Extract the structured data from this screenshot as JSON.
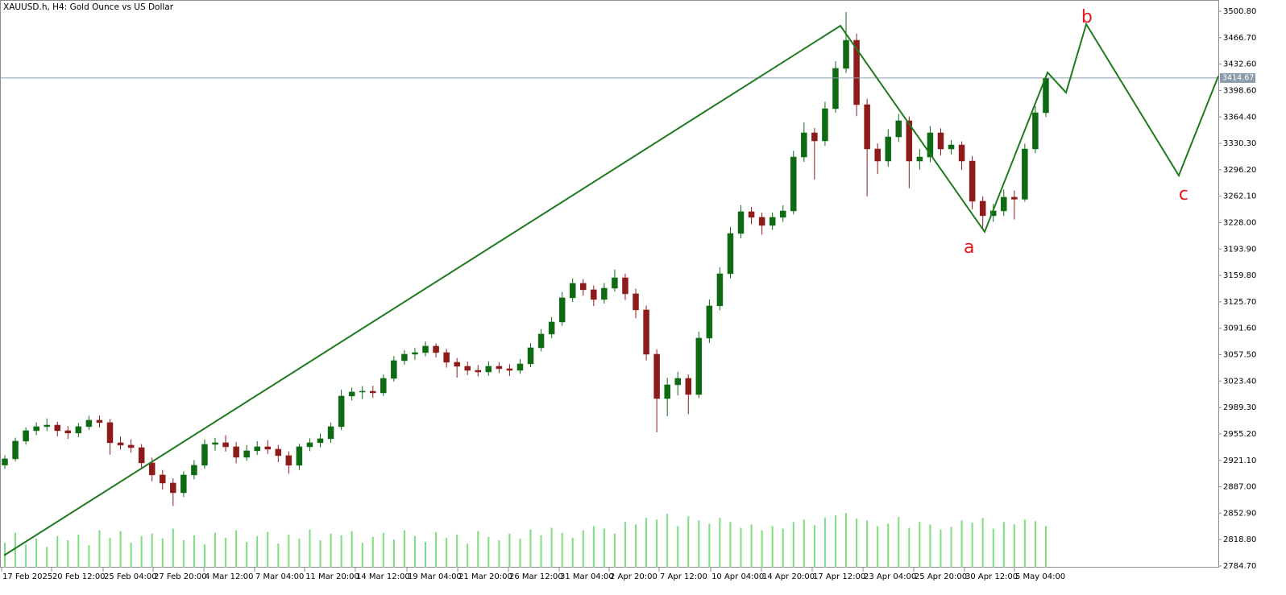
{
  "chart_data": {
    "type": "candlestick",
    "title": "XAUUSD.h, H4:  Gold Ounce vs US Dollar",
    "ylim": [
      2782.6,
      3515.4
    ],
    "yticks": [
      {
        "value": 3500.8,
        "label": "3500.80"
      },
      {
        "value": 3466.7,
        "label": "3466.70"
      },
      {
        "value": 3432.6,
        "label": "3432.60"
      },
      {
        "value": 3398.6,
        "label": "3398.60"
      },
      {
        "value": 3364.4,
        "label": "3364.40"
      },
      {
        "value": 3330.3,
        "label": "3330.30"
      },
      {
        "value": 3296.2,
        "label": "3296.20"
      },
      {
        "value": 3262.1,
        "label": "3262.10"
      },
      {
        "value": 3228.0,
        "label": "3228.00"
      },
      {
        "value": 3193.9,
        "label": "3193.90"
      },
      {
        "value": 3159.8,
        "label": "3159.80"
      },
      {
        "value": 3125.7,
        "label": "3125.70"
      },
      {
        "value": 3091.6,
        "label": "3091.60"
      },
      {
        "value": 3057.5,
        "label": "3057.50"
      },
      {
        "value": 3023.4,
        "label": "3023.40"
      },
      {
        "value": 2989.3,
        "label": "2989.30"
      },
      {
        "value": 2955.2,
        "label": "2955.20"
      },
      {
        "value": 2921.1,
        "label": "2921.10"
      },
      {
        "value": 2887.0,
        "label": "2887.00"
      },
      {
        "value": 2852.9,
        "label": "2852.90"
      },
      {
        "value": 2818.8,
        "label": "2818.80"
      },
      {
        "value": 2784.7,
        "label": "2784.70"
      }
    ],
    "xlim": [
      -0.46,
      115.4
    ],
    "xticks": [
      {
        "value": -0.31,
        "label": "17 Feb 2025"
      },
      {
        "value": 4.44,
        "label": "20 Feb 12:00"
      },
      {
        "value": 9.35,
        "label": "25 Feb 04:00"
      },
      {
        "value": 14.1,
        "label": "27 Feb 20:00"
      },
      {
        "value": 18.93,
        "label": "4 Mar 12:00"
      },
      {
        "value": 23.75,
        "label": "7 Mar 04:00"
      },
      {
        "value": 28.51,
        "label": "11 Mar 20:00"
      },
      {
        "value": 33.33,
        "label": "14 Mar 12:00"
      },
      {
        "value": 38.24,
        "label": "19 Mar 04:00"
      },
      {
        "value": 43.07,
        "label": "21 Mar 20:00"
      },
      {
        "value": 47.89,
        "label": "26 Mar 12:00"
      },
      {
        "value": 52.72,
        "label": "31 Mar 04:00"
      },
      {
        "value": 57.47,
        "label": "2 Apr 20:00"
      },
      {
        "value": 62.22,
        "label": "7 Apr 12:00"
      },
      {
        "value": 67.13,
        "label": "10 Apr 04:00"
      },
      {
        "value": 71.95,
        "label": "14 Apr 20:00"
      },
      {
        "value": 76.78,
        "label": "17 Apr 12:00"
      },
      {
        "value": 81.61,
        "label": "23 Apr 04:00"
      },
      {
        "value": 86.43,
        "label": "25 Apr 20:00"
      },
      {
        "value": 91.26,
        "label": "30 Apr 12:00"
      },
      {
        "value": 96.01,
        "label": "5 May 04:00"
      }
    ],
    "colors": {
      "up": "#0e6b14",
      "down": "#8e1b1b",
      "volume": "#7fdc7f",
      "price_line": "#8a9bab"
    },
    "ohlc": [
      [
        2915.0,
        2927.5,
        2910.2,
        2923.0
      ],
      [
        2923.0,
        2950.3,
        2919.8,
        2945.9
      ],
      [
        2945.9,
        2963.8,
        2941.2,
        2959.4
      ],
      [
        2959.4,
        2970.1,
        2953.6,
        2964.6
      ],
      [
        2964.6,
        2975.2,
        2958.9,
        2966.6
      ],
      [
        2966.6,
        2971.0,
        2952.1,
        2959.4
      ],
      [
        2959.4,
        2965.3,
        2948.7,
        2956.3
      ],
      [
        2956.3,
        2969.4,
        2951.0,
        2964.6
      ],
      [
        2964.6,
        2978.6,
        2960.2,
        2972.9
      ],
      [
        2972.9,
        2979.1,
        2963.5,
        2969.8
      ],
      [
        2969.8,
        2974.2,
        2928.4,
        2943.8
      ],
      [
        2943.8,
        2951.6,
        2935.0,
        2940.7
      ],
      [
        2940.7,
        2948.3,
        2930.9,
        2937.5
      ],
      [
        2937.5,
        2942.0,
        2909.6,
        2917.8
      ],
      [
        2917.8,
        2924.5,
        2894.0,
        2902.2
      ],
      [
        2902.2,
        2908.7,
        2883.5,
        2891.8
      ],
      [
        2891.8,
        2898.0,
        2862.1,
        2879.3
      ],
      [
        2879.3,
        2906.9,
        2873.6,
        2902.2
      ],
      [
        2902.2,
        2921.4,
        2896.5,
        2914.7
      ],
      [
        2914.7,
        2948.0,
        2910.3,
        2941.7
      ],
      [
        2941.7,
        2950.2,
        2933.6,
        2943.8
      ],
      [
        2943.8,
        2953.5,
        2932.4,
        2938.6
      ],
      [
        2938.6,
        2944.7,
        2917.3,
        2925.1
      ],
      [
        2925.1,
        2940.8,
        2920.5,
        2933.4
      ],
      [
        2933.4,
        2945.9,
        2928.0,
        2938.6
      ],
      [
        2938.6,
        2947.2,
        2929.3,
        2935.5
      ],
      [
        2935.5,
        2941.1,
        2918.8,
        2927.2
      ],
      [
        2927.2,
        2932.6,
        2903.9,
        2914.7
      ],
      [
        2914.7,
        2942.3,
        2908.8,
        2938.6
      ],
      [
        2938.6,
        2949.5,
        2933.0,
        2943.8
      ],
      [
        2943.8,
        2955.4,
        2938.1,
        2949.0
      ],
      [
        2949.0,
        2969.9,
        2943.7,
        2964.6
      ],
      [
        2964.6,
        3012.5,
        2960.1,
        3004.1
      ],
      [
        3004.1,
        3015.0,
        2998.6,
        3009.3
      ],
      [
        3009.3,
        3016.8,
        3000.2,
        3010.3
      ],
      [
        3010.3,
        3017.4,
        3001.6,
        3008.2
      ],
      [
        3008.2,
        3032.0,
        3004.3,
        3026.9
      ],
      [
        3026.9,
        3055.7,
        3022.8,
        3049.8
      ],
      [
        3049.8,
        3063.4,
        3044.5,
        3058.1
      ],
      [
        3058.1,
        3066.2,
        3051.0,
        3060.2
      ],
      [
        3060.2,
        3074.6,
        3055.3,
        3068.5
      ],
      [
        3068.5,
        3072.1,
        3054.0,
        3060.2
      ],
      [
        3060.2,
        3065.0,
        3040.8,
        3047.7
      ],
      [
        3047.7,
        3053.3,
        3027.9,
        3042.5
      ],
      [
        3042.5,
        3048.6,
        3031.2,
        3037.3
      ],
      [
        3037.3,
        3044.0,
        3029.5,
        3035.2
      ],
      [
        3035.2,
        3049.1,
        3030.4,
        3042.5
      ],
      [
        3042.5,
        3047.8,
        3033.7,
        3039.4
      ],
      [
        3039.4,
        3045.2,
        3030.1,
        3037.3
      ],
      [
        3037.3,
        3051.9,
        3032.8,
        3045.6
      ],
      [
        3045.6,
        3072.3,
        3041.4,
        3066.4
      ],
      [
        3066.4,
        3090.5,
        3061.7,
        3084.1
      ],
      [
        3084.1,
        3106.2,
        3079.0,
        3099.7
      ],
      [
        3099.7,
        3138.4,
        3094.8,
        3130.9
      ],
      [
        3130.9,
        3156.0,
        3125.5,
        3149.6
      ],
      [
        3149.6,
        3155.1,
        3133.8,
        3141.3
      ],
      [
        3141.3,
        3146.9,
        3120.2,
        3128.8
      ],
      [
        3128.8,
        3150.0,
        3123.5,
        3143.3
      ],
      [
        3143.3,
        3167.4,
        3138.9,
        3156.8
      ],
      [
        3156.8,
        3162.2,
        3128.0,
        3136.1
      ],
      [
        3136.1,
        3142.7,
        3104.6,
        3115.3
      ],
      [
        3115.3,
        3121.0,
        3050.2,
        3058.1
      ],
      [
        3058.1,
        3064.5,
        2957.3,
        3000.9
      ],
      [
        3000.9,
        3027.6,
        2978.2,
        3018.6
      ],
      [
        3018.6,
        3035.4,
        3005.0,
        3026.9
      ],
      [
        3026.9,
        3032.1,
        2980.7,
        3006.1
      ],
      [
        3006.1,
        3087.3,
        3001.5,
        3078.9
      ],
      [
        3078.9,
        3128.8,
        3072.6,
        3120.5
      ],
      [
        3120.5,
        3170.2,
        3114.9,
        3162.0
      ],
      [
        3162.0,
        3222.6,
        3156.3,
        3214.0
      ],
      [
        3214.0,
        3250.5,
        3207.8,
        3242.1
      ],
      [
        3242.1,
        3248.4,
        3226.0,
        3234.8
      ],
      [
        3234.8,
        3240.9,
        3212.5,
        3224.4
      ],
      [
        3224.4,
        3241.0,
        3218.7,
        3234.8
      ],
      [
        3234.8,
        3250.3,
        3228.9,
        3243.1
      ],
      [
        3243.1,
        3320.8,
        3238.6,
        3312.7
      ],
      [
        3312.7,
        3357.2,
        3306.4,
        3343.9
      ],
      [
        3343.9,
        3350.1,
        3283.5,
        3333.5
      ],
      [
        3333.5,
        3384.0,
        3327.2,
        3375.1
      ],
      [
        3375.1,
        3436.3,
        3369.8,
        3427.1
      ],
      [
        3427.1,
        3499.8,
        3421.4,
        3463.4
      ],
      [
        3463.4,
        3472.0,
        3365.5,
        3380.3
      ],
      [
        3380.3,
        3387.9,
        3262.0,
        3323.1
      ],
      [
        3323.1,
        3330.4,
        3290.7,
        3307.5
      ],
      [
        3307.5,
        3348.6,
        3300.2,
        3338.7
      ],
      [
        3338.7,
        3368.3,
        3332.1,
        3359.5
      ],
      [
        3359.5,
        3365.0,
        3272.4,
        3307.5
      ],
      [
        3307.5,
        3322.9,
        3296.3,
        3312.7
      ],
      [
        3312.7,
        3352.5,
        3306.0,
        3343.9
      ],
      [
        3343.9,
        3349.7,
        3314.6,
        3323.1
      ],
      [
        3323.1,
        3334.8,
        3316.2,
        3328.3
      ],
      [
        3328.3,
        3333.0,
        3296.0,
        3307.5
      ],
      [
        3307.5,
        3314.1,
        3245.3,
        3255.6
      ],
      [
        3255.6,
        3262.0,
        3220.4,
        3236.9
      ],
      [
        3236.9,
        3252.3,
        3229.0,
        3243.1
      ],
      [
        3243.1,
        3270.8,
        3236.5,
        3260.8
      ],
      [
        3260.8,
        3269.4,
        3232.1,
        3258.2
      ],
      [
        3258.2,
        3330.1,
        3255.0,
        3323.1
      ],
      [
        3323.1,
        3378.2,
        3317.6,
        3369.9
      ],
      [
        3369.9,
        3418.4,
        3364.2,
        3414.67
      ]
    ],
    "volume": [
      30,
      42,
      28,
      35,
      25,
      38,
      33,
      40,
      27,
      45,
      36,
      44,
      30,
      38,
      41,
      35,
      47,
      33,
      39,
      28,
      42,
      36,
      45,
      31,
      38,
      43,
      29,
      40,
      35,
      46,
      33,
      41,
      39,
      44,
      30,
      37,
      42,
      34,
      45,
      38,
      31,
      43,
      36,
      40,
      29,
      44,
      37,
      33,
      41,
      35,
      46,
      39,
      48,
      42,
      36,
      45,
      50,
      47,
      41,
      55,
      52,
      60,
      58,
      65,
      50,
      62,
      57,
      53,
      60,
      55,
      48,
      52,
      45,
      50,
      47,
      55,
      58,
      51,
      60,
      63,
      66,
      59,
      57,
      50,
      53,
      61,
      48,
      55,
      52,
      46,
      49,
      57,
      54,
      60,
      47,
      55,
      52,
      58,
      56,
      50
    ],
    "price_line": 3414.67,
    "wave": {
      "color": "#1f7a1f",
      "x": [
        -0.08,
        79.46,
        93.18,
        99.16,
        100.92,
        102.84,
        111.64,
        115.4
      ],
      "y": [
        2798.3,
        3482.1,
        3216.1,
        3421.9,
        3395.9,
        3484.2,
        3288.8,
        3417.0
      ]
    },
    "annotations": [
      {
        "text": "a",
        "x": 91.7,
        "y": 3195.3
      },
      {
        "text": "b",
        "x": 102.9,
        "y": 3492.5
      },
      {
        "text": "c",
        "x": 112.1,
        "y": 3263.9
      }
    ]
  }
}
